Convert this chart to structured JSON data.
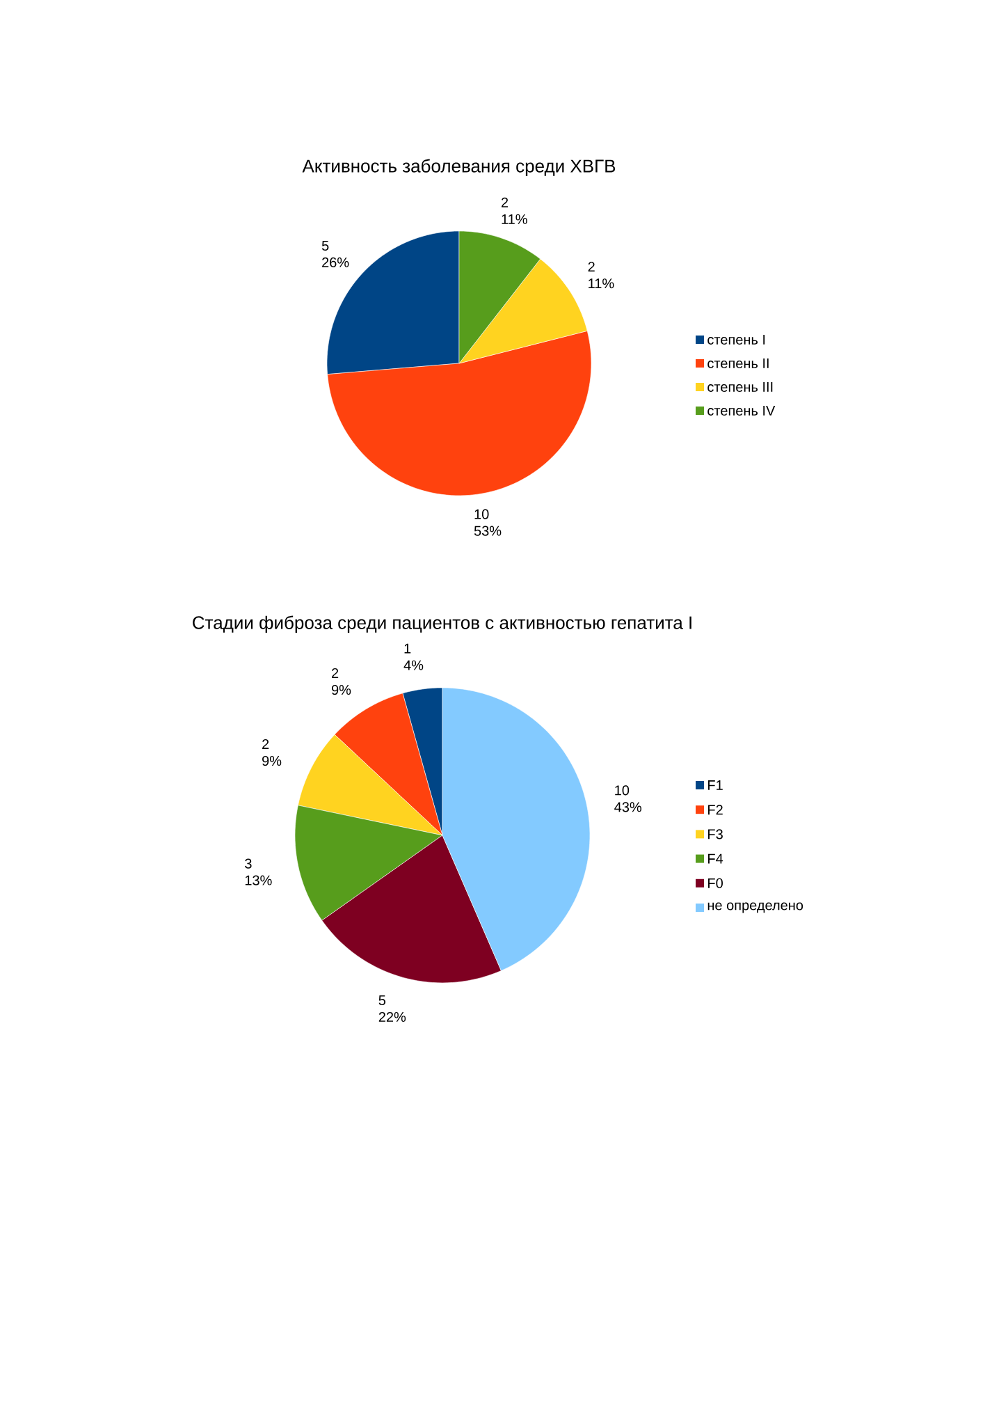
{
  "chart_data": [
    {
      "type": "pie",
      "title": "Активность заболевания среди ХВГВ",
      "legend": "right",
      "categories": [
        "степень I",
        "степень II",
        "степень III",
        "степень IV"
      ],
      "values": [
        5,
        10,
        2,
        2
      ],
      "colors": [
        "#004586",
        "#ff420e",
        "#ffd320",
        "#579d1c"
      ],
      "value_labels": [
        "5 26%",
        "10 53%",
        "2 11%",
        "2 11%"
      ]
    },
    {
      "type": "pie",
      "title": "Стадии фиброза среди пациентов с активностью гепатита I",
      "legend": "right",
      "categories": [
        "F1",
        "F2",
        "F3",
        "F4",
        "F0",
        "не определено"
      ],
      "values": [
        1,
        2,
        2,
        3,
        5,
        10
      ],
      "colors": [
        "#004586",
        "#ff420e",
        "#ffd320",
        "#579d1c",
        "#7e0021",
        "#83caff"
      ],
      "value_labels": [
        "1 4%",
        "2 9%",
        "2 9%",
        "3 13%",
        "5 22%",
        "10 43%"
      ]
    }
  ]
}
